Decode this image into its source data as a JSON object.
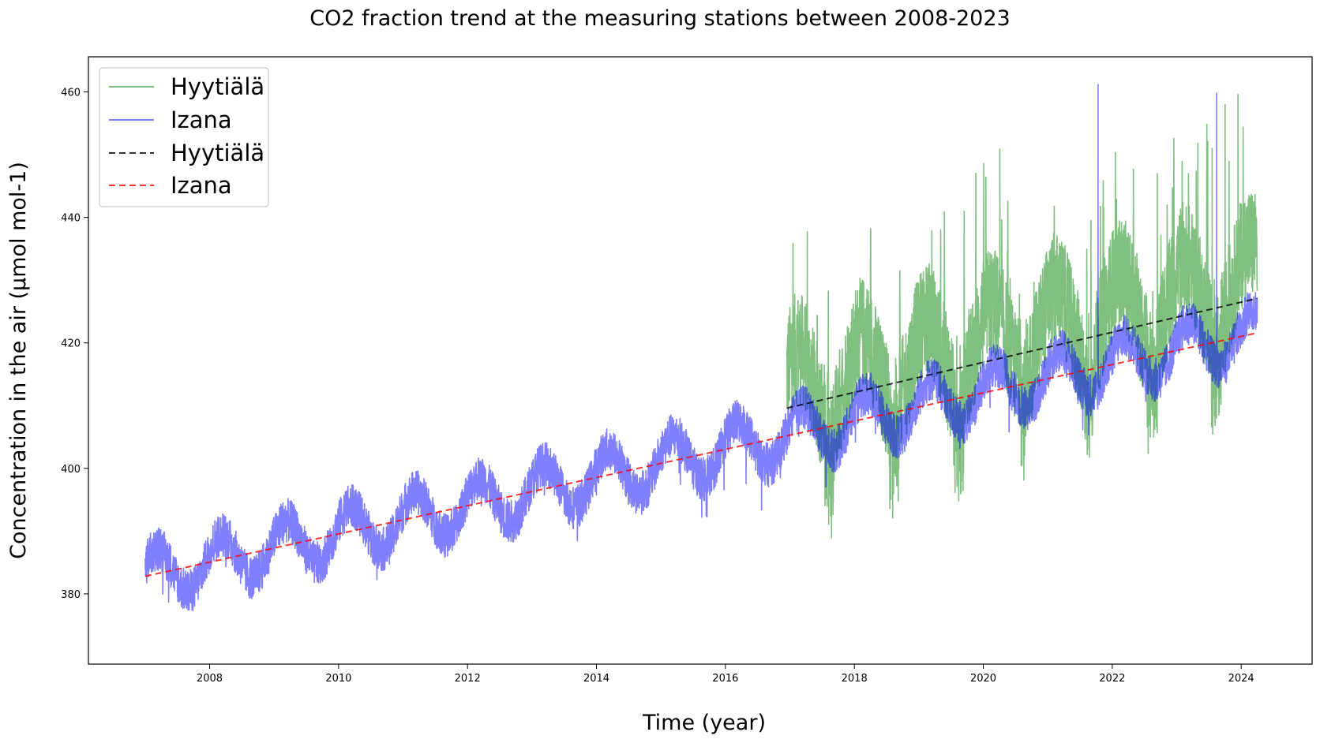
{
  "chart_data": {
    "type": "line",
    "title": "CO2 fraction trend at the measuring stations between 2008-2023",
    "xlabel": "Time (year)",
    "ylabel": "Concentration in the air (µmol mol-1)",
    "xlim": [
      2006.12,
      2025.1
    ],
    "ylim": [
      368.8,
      465.6
    ],
    "xticks": [
      "2008",
      "2010",
      "2012",
      "2014",
      "2016",
      "2018",
      "2020",
      "2022",
      "2024"
    ],
    "yticks": [
      "380",
      "400",
      "420",
      "440",
      "460"
    ],
    "grid": false,
    "legend_placement": "top-left",
    "series": [
      {
        "name": "Hyytiälä",
        "style": "solid",
        "color": "#008000",
        "opacity": 0.5,
        "x_start": 2016.95,
        "x_end": 2024.25,
        "trend": {
          "slope": 2.395,
          "intercept": 409.6,
          "x0": 2016.95
        },
        "seasonal_amplitude": 6.5,
        "annual_min_month_fraction": 0.62,
        "noise_range": [
          -15,
          25
        ],
        "peaks": [
          {
            "x": 2023.75,
            "y": 458.0
          },
          {
            "x": 2023.95,
            "y": 459.6
          },
          {
            "x": 2023.55,
            "y": 451.0
          },
          {
            "x": 2022.7,
            "y": 447.0
          }
        ]
      },
      {
        "name": "Izana",
        "style": "solid",
        "color": "#0000ff",
        "opacity": 0.5,
        "x_start": 2007.0,
        "x_end": 2024.25,
        "trend": {
          "slope": 2.25,
          "intercept": 382.8,
          "x0": 2007.0
        },
        "seasonal_amplitude": 4.0,
        "annual_min_month_fraction": 0.68,
        "noise_range": [
          -4,
          4
        ],
        "peaks": [
          {
            "x": 2021.78,
            "y": 461.2
          },
          {
            "x": 2023.62,
            "y": 459.8
          }
        ]
      },
      {
        "name": "Hyytiälä",
        "style": "dashed",
        "color": "#000000",
        "opacity": 0.8,
        "x": [
          2016.95,
          2024.25
        ],
        "y": [
          409.6,
          427.1
        ]
      },
      {
        "name": "Izana",
        "style": "dashed",
        "color": "#ff0000",
        "opacity": 0.8,
        "x": [
          2007.0,
          2024.25
        ],
        "y": [
          382.8,
          421.6
        ]
      }
    ]
  }
}
